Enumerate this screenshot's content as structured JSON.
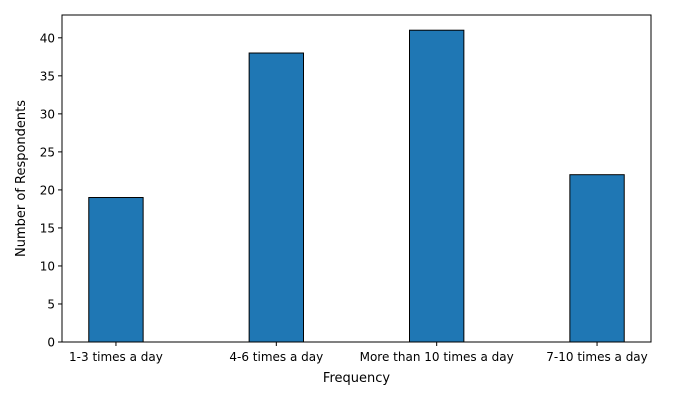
{
  "chart_data": {
    "type": "bar",
    "title": "",
    "xlabel": "Frequency",
    "ylabel": "Number of Respondents",
    "categories": [
      "1-3 times a day",
      "4-6 times a day",
      "More than 10 times a day",
      "7-10 times a day"
    ],
    "values": [
      19,
      38,
      41,
      22
    ],
    "ylim": [
      0,
      43
    ],
    "yticks": [
      0,
      5,
      10,
      15,
      20,
      25,
      30,
      35,
      40
    ],
    "grid": false,
    "bar_color": "#1f77b4",
    "edge_color": "#000000"
  }
}
